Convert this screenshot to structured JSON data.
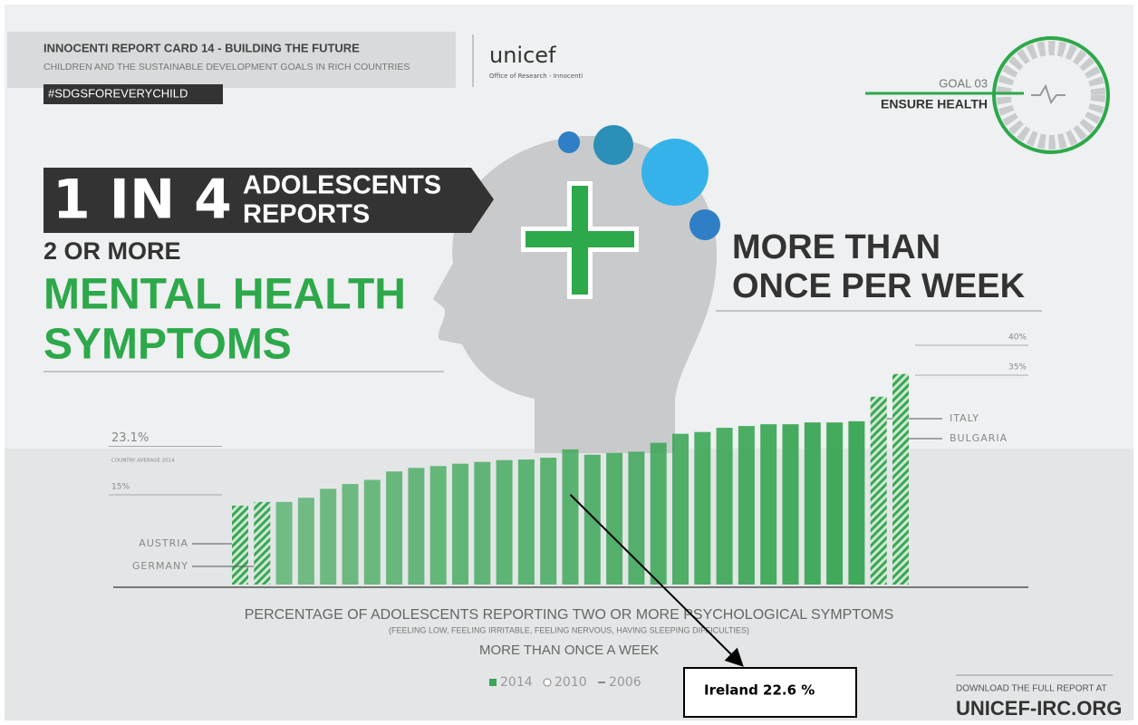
{
  "header": {
    "title": "INNOCENTI REPORT CARD 14 - BUILDING THE FUTURE",
    "subtitle": "CHILDREN AND THE SUSTAINABLE DEVELOPMENT GOALS IN RICH COUNTRIES",
    "hashtag": "#SDGSFOREVERYCHILD",
    "logo": "unicef",
    "logo_sub": "Office of Research - Innocenti",
    "goal": "GOAL 03",
    "goal_title": "ENSURE HEALTH"
  },
  "headline": {
    "big": "1 IN 4",
    "line1": "ADOLESCENTS",
    "line2": "REPORTS",
    "line3": "2 OR MORE",
    "line4": "MENTAL HEALTH",
    "line5": "SYMPTOMS",
    "right1": "MORE THAN",
    "right2": "ONCE PER WEEK"
  },
  "footer": {
    "line1": "DOWNLOAD THE FULL REPORT AT",
    "line2": "UNICEF-IRC.ORG"
  },
  "chart_data": {
    "type": "bar",
    "title": "PERCENTAGE OF ADOLESCENTS REPORTING TWO OR MORE PSYCHOLOGICAL SYMPTOMS",
    "subtitle": "(FEELING LOW, FEELING IRRITABLE, FEELING NERVOUS, HAVING SLEEPING DIFFICULTIES)",
    "subtitle2": "MORE THAN ONCE A WEEK",
    "categories": [
      "AUSTRIA",
      "GERMANY",
      null,
      null,
      null,
      null,
      null,
      null,
      null,
      null,
      null,
      null,
      null,
      null,
      null,
      null,
      null,
      null,
      null,
      null,
      null,
      null,
      null,
      null,
      null,
      null,
      null,
      null,
      null,
      "ITALY",
      "BULGARIA"
    ],
    "values": [
      13.2,
      13.8,
      13.8,
      14.5,
      16.0,
      16.8,
      17.5,
      18.9,
      19.5,
      19.8,
      20.2,
      20.5,
      20.8,
      20.9,
      21.2,
      22.6,
      21.7,
      22.0,
      22.2,
      23.7,
      25.2,
      25.5,
      26.2,
      26.5,
      26.8,
      26.8,
      27.1,
      27.1,
      27.3,
      31.4,
      35.2
    ],
    "hatched": [
      0,
      1,
      29,
      30
    ],
    "color": "#3aa655",
    "legend": [
      "2014",
      "2010",
      "2006"
    ],
    "ylim": [
      0,
      40
    ],
    "yticks": [
      {
        "value": 15,
        "label": "15%"
      },
      {
        "value": 23.1,
        "label": "23.1%"
      },
      {
        "value": 35,
        "label": "35%"
      },
      {
        "value": 40,
        "label": "40%"
      }
    ],
    "average_label": "COUNTRY AVERAGE 2014",
    "annotation": {
      "text": "Ireland 22.6 %",
      "value": 22.6
    }
  }
}
